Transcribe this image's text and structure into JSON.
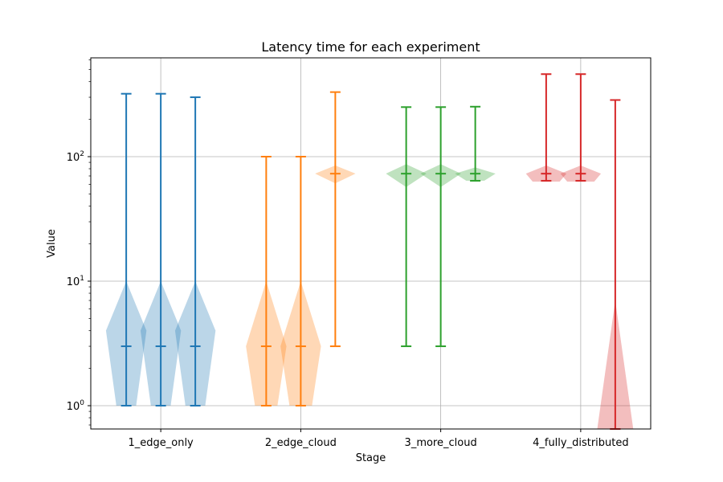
{
  "chart_data": {
    "type": "violin",
    "title": "Latency time for each experiment",
    "xlabel": "Stage",
    "ylabel": "Value",
    "yscale": "log",
    "ylim": [
      0.65,
      620
    ],
    "grid": true,
    "categories": [
      "1_edge_only",
      "2_edge_cloud",
      "3_more_cloud",
      "4_fully_distributed"
    ],
    "yticks": [
      {
        "value": 1,
        "base": "10",
        "exp": "0"
      },
      {
        "value": 10,
        "base": "10",
        "exp": "1"
      },
      {
        "value": 100,
        "base": "10",
        "exp": "2"
      }
    ],
    "groups": [
      {
        "category": "1_edge_only",
        "color": "#1f77b4",
        "violins": [
          {
            "min": 1,
            "median": 3,
            "max": 320,
            "shape": [
              [
                1,
                0.22
              ],
              [
                4,
                0.45
              ],
              [
                10,
                0.0
              ]
            ]
          },
          {
            "min": 1,
            "median": 3,
            "max": 320,
            "shape": [
              [
                1,
                0.22
              ],
              [
                4,
                0.45
              ],
              [
                10,
                0.0
              ]
            ]
          },
          {
            "min": 1,
            "median": 3,
            "max": 300,
            "shape": [
              [
                1,
                0.22
              ],
              [
                4,
                0.45
              ],
              [
                10,
                0.0
              ]
            ]
          }
        ]
      },
      {
        "category": "2_edge_cloud",
        "color": "#ff7f0e",
        "violins": [
          {
            "min": 1,
            "median": 3,
            "max": 100,
            "shape": [
              [
                1,
                0.25
              ],
              [
                3,
                0.45
              ],
              [
                10,
                0.0
              ]
            ]
          },
          {
            "min": 1,
            "median": 3,
            "max": 100,
            "shape": [
              [
                1,
                0.25
              ],
              [
                3,
                0.45
              ],
              [
                10,
                0.0
              ]
            ]
          },
          {
            "min": 3,
            "median": 73,
            "max": 330,
            "shape": [
              [
                61,
                0.0
              ],
              [
                73,
                0.45
              ],
              [
                85,
                0.0
              ]
            ]
          }
        ]
      },
      {
        "category": "3_more_cloud",
        "color": "#2ca02c",
        "violins": [
          {
            "min": 3,
            "median": 73,
            "max": 250,
            "shape": [
              [
                57,
                0.0
              ],
              [
                73,
                0.45
              ],
              [
                87,
                0.0
              ]
            ]
          },
          {
            "min": 3,
            "median": 73,
            "max": 250,
            "shape": [
              [
                57,
                0.0
              ],
              [
                73,
                0.45
              ],
              [
                87,
                0.0
              ]
            ]
          },
          {
            "min": 64,
            "median": 73,
            "max": 252,
            "shape": [
              [
                64,
                0.2
              ],
              [
                73,
                0.45
              ],
              [
                82,
                0.0
              ]
            ]
          }
        ]
      },
      {
        "category": "4_fully_distributed",
        "color": "#d62728",
        "violins": [
          {
            "min": 64,
            "median": 73,
            "max": 460,
            "shape": [
              [
                63,
                0.3
              ],
              [
                73,
                0.45
              ],
              [
                85,
                0.0
              ]
            ]
          },
          {
            "min": 64,
            "median": 73,
            "max": 460,
            "shape": [
              [
                63,
                0.3
              ],
              [
                73,
                0.45
              ],
              [
                85,
                0.0
              ]
            ]
          },
          {
            "min": 0.65,
            "median": 0.65,
            "max": 285,
            "shape": [
              [
                0.65,
                0.4
              ],
              [
                7,
                0.0
              ]
            ]
          }
        ]
      }
    ]
  }
}
